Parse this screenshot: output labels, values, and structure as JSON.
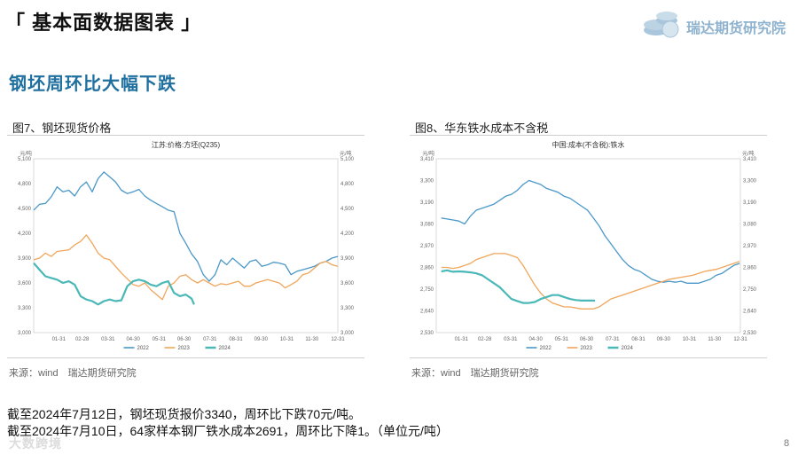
{
  "page": {
    "title": "「 基本面数据图表 」",
    "logo_text": "瑞达期货研究院",
    "section_heading": "钢坯周环比大幅下跌",
    "page_number": "8",
    "watermark": "大数跨境",
    "notes": [
      "截至2024年7月12日，钢坯现货报价3340，周环比下跌70元/吨。",
      "截至2024年7月10日，64家样本钢厂铁水成本2691，周环比下降1。（单位元/吨）"
    ],
    "colors": {
      "s2022": "#4a98c9",
      "s2023": "#f0a65c",
      "s2024": "#4bb8b8",
      "heading": "#1f6f9f"
    }
  },
  "chart_data": [
    {
      "type": "line",
      "figure_title": "图7、钢坯现货价格",
      "title": "江苏:价格:方坯(Q235)",
      "unit_left": "元/吨",
      "unit_right": "元/吨",
      "ylim": [
        3000,
        5100
      ],
      "yticks": [
        3000,
        3300,
        3600,
        3900,
        4200,
        4500,
        4800,
        5100
      ],
      "ytick_labels": [
        "3,000",
        "3,300",
        "3,600",
        "3,900",
        "4,200",
        "4,500",
        "4,800",
        "5,100"
      ],
      "xlim": [
        1,
        365
      ],
      "xtick_pos": [
        31,
        59,
        90,
        120,
        151,
        181,
        212,
        243,
        273,
        304,
        334,
        365
      ],
      "xtick_labels": [
        "01-31",
        "02-28",
        "03-31",
        "04-30",
        "05-31",
        "06-30",
        "07-31",
        "08-31",
        "09-30",
        "10-31",
        "11-30",
        "12-31"
      ],
      "series": [
        {
          "name": "2022",
          "x": [
            1,
            8,
            15,
            22,
            29,
            36,
            43,
            50,
            57,
            64,
            71,
            78,
            85,
            92,
            99,
            106,
            113,
            120,
            127,
            134,
            141,
            148,
            155,
            162,
            169,
            176,
            183,
            190,
            197,
            204,
            211,
            218,
            225,
            232,
            239,
            246,
            253,
            260,
            267,
            274,
            281,
            288,
            295,
            302,
            309,
            316,
            323,
            330,
            337,
            344,
            351,
            358,
            365
          ],
          "y": [
            4480,
            4550,
            4560,
            4640,
            4760,
            4700,
            4720,
            4650,
            4760,
            4820,
            4700,
            4860,
            4940,
            4880,
            4820,
            4720,
            4680,
            4700,
            4730,
            4650,
            4600,
            4560,
            4520,
            4480,
            4460,
            4200,
            4080,
            3950,
            3860,
            3700,
            3620,
            3700,
            3880,
            3820,
            3900,
            3840,
            3780,
            3860,
            3880,
            3800,
            3820,
            3850,
            3840,
            3820,
            3700,
            3740,
            3760,
            3780,
            3800,
            3840,
            3860,
            3900,
            3920
          ]
        },
        {
          "name": "2023",
          "x": [
            1,
            8,
            15,
            22,
            29,
            36,
            43,
            50,
            57,
            64,
            71,
            78,
            85,
            92,
            99,
            106,
            113,
            120,
            127,
            134,
            141,
            148,
            155,
            162,
            169,
            176,
            183,
            190,
            197,
            204,
            211,
            218,
            225,
            232,
            239,
            246,
            253,
            260,
            267,
            274,
            281,
            288,
            295,
            302,
            309,
            316,
            323,
            330,
            337,
            344,
            351,
            358,
            365
          ],
          "y": [
            3880,
            3900,
            3960,
            3920,
            3980,
            3990,
            4000,
            4060,
            4100,
            4180,
            4080,
            3960,
            3900,
            3880,
            3800,
            3720,
            3650,
            3580,
            3560,
            3600,
            3520,
            3460,
            3400,
            3560,
            3600,
            3680,
            3700,
            3640,
            3600,
            3640,
            3600,
            3560,
            3590,
            3580,
            3600,
            3620,
            3560,
            3560,
            3600,
            3620,
            3640,
            3620,
            3600,
            3540,
            3580,
            3620,
            3700,
            3720,
            3780,
            3840,
            3860,
            3820,
            3800
          ]
        },
        {
          "name": "2024",
          "x": [
            1,
            8,
            15,
            22,
            29,
            36,
            43,
            50,
            57,
            64,
            71,
            78,
            85,
            92,
            99,
            106,
            113,
            120,
            127,
            134,
            141,
            148,
            155,
            162,
            169,
            176,
            183,
            190,
            193
          ],
          "y": [
            3840,
            3760,
            3680,
            3660,
            3640,
            3600,
            3620,
            3580,
            3440,
            3400,
            3380,
            3340,
            3380,
            3400,
            3380,
            3390,
            3560,
            3620,
            3640,
            3620,
            3580,
            3560,
            3600,
            3620,
            3480,
            3440,
            3460,
            3410,
            3340
          ]
        }
      ]
    },
    {
      "type": "line",
      "figure_title": "图8、华东铁水成本不含税",
      "title": "中国:成本(不含税):铁水",
      "unit_left": "元/吨",
      "unit_right": "元/吨",
      "ylim": [
        2530,
        3410
      ],
      "yticks": [
        2530,
        2640,
        2750,
        2860,
        2970,
        3080,
        3190,
        3300,
        3410
      ],
      "ytick_labels": [
        "2,530",
        "2,640",
        "2,750",
        "2,860",
        "2,970",
        "3,080",
        "3,190",
        "3,300",
        "3,410"
      ],
      "xlim": [
        1,
        365
      ],
      "xtick_pos": [
        31,
        59,
        90,
        120,
        151,
        181,
        212,
        243,
        273,
        304,
        334,
        365
      ],
      "xtick_labels": [
        "01-31",
        "02-28",
        "03-31",
        "04-30",
        "05-31",
        "06-30",
        "07-31",
        "08-31",
        "09-30",
        "10-31",
        "11-30",
        "12-31"
      ],
      "series": [
        {
          "name": "2022",
          "x": [
            7,
            14,
            21,
            28,
            35,
            42,
            49,
            56,
            63,
            70,
            77,
            84,
            91,
            98,
            105,
            112,
            119,
            126,
            133,
            140,
            147,
            154,
            161,
            168,
            175,
            182,
            189,
            196,
            203,
            210,
            217,
            224,
            231,
            238,
            245,
            252,
            259,
            266,
            273,
            280,
            287,
            294,
            301,
            308,
            315,
            322,
            329,
            336,
            343,
            350,
            357,
            364
          ],
          "y": [
            3110,
            3105,
            3100,
            3095,
            3080,
            3120,
            3150,
            3160,
            3170,
            3180,
            3200,
            3220,
            3230,
            3250,
            3280,
            3300,
            3290,
            3280,
            3260,
            3250,
            3240,
            3220,
            3210,
            3190,
            3170,
            3150,
            3110,
            3070,
            3020,
            2980,
            2940,
            2900,
            2870,
            2850,
            2840,
            2820,
            2800,
            2790,
            2785,
            2790,
            2785,
            2790,
            2780,
            2780,
            2780,
            2790,
            2800,
            2820,
            2830,
            2850,
            2870,
            2880
          ]
        },
        {
          "name": "2023",
          "x": [
            7,
            14,
            21,
            28,
            35,
            42,
            49,
            56,
            63,
            70,
            77,
            84,
            91,
            98,
            105,
            112,
            119,
            126,
            133,
            140,
            147,
            154,
            161,
            168,
            175,
            182,
            189,
            196,
            203,
            210,
            217,
            224,
            231,
            238,
            245,
            252,
            259,
            266,
            273,
            280,
            287,
            294,
            301,
            308,
            315,
            322,
            329,
            336,
            343,
            350,
            357,
            364
          ],
          "y": [
            2860,
            2860,
            2855,
            2860,
            2870,
            2880,
            2900,
            2910,
            2920,
            2930,
            2930,
            2930,
            2920,
            2910,
            2870,
            2820,
            2770,
            2730,
            2700,
            2680,
            2670,
            2660,
            2660,
            2655,
            2650,
            2650,
            2650,
            2660,
            2680,
            2700,
            2710,
            2720,
            2730,
            2740,
            2750,
            2760,
            2770,
            2780,
            2790,
            2800,
            2805,
            2810,
            2815,
            2820,
            2830,
            2840,
            2845,
            2850,
            2860,
            2870,
            2880,
            2890
          ]
        },
        {
          "name": "2024",
          "x": [
            7,
            14,
            21,
            28,
            35,
            42,
            49,
            56,
            63,
            70,
            77,
            84,
            91,
            98,
            105,
            112,
            119,
            126,
            133,
            140,
            147,
            154,
            161,
            168,
            175,
            182,
            189,
            191
          ],
          "y": [
            2840,
            2845,
            2838,
            2840,
            2838,
            2835,
            2830,
            2820,
            2800,
            2780,
            2760,
            2730,
            2700,
            2690,
            2680,
            2680,
            2685,
            2700,
            2710,
            2720,
            2720,
            2710,
            2700,
            2695,
            2692,
            2692,
            2692,
            2691
          ]
        }
      ]
    }
  ]
}
